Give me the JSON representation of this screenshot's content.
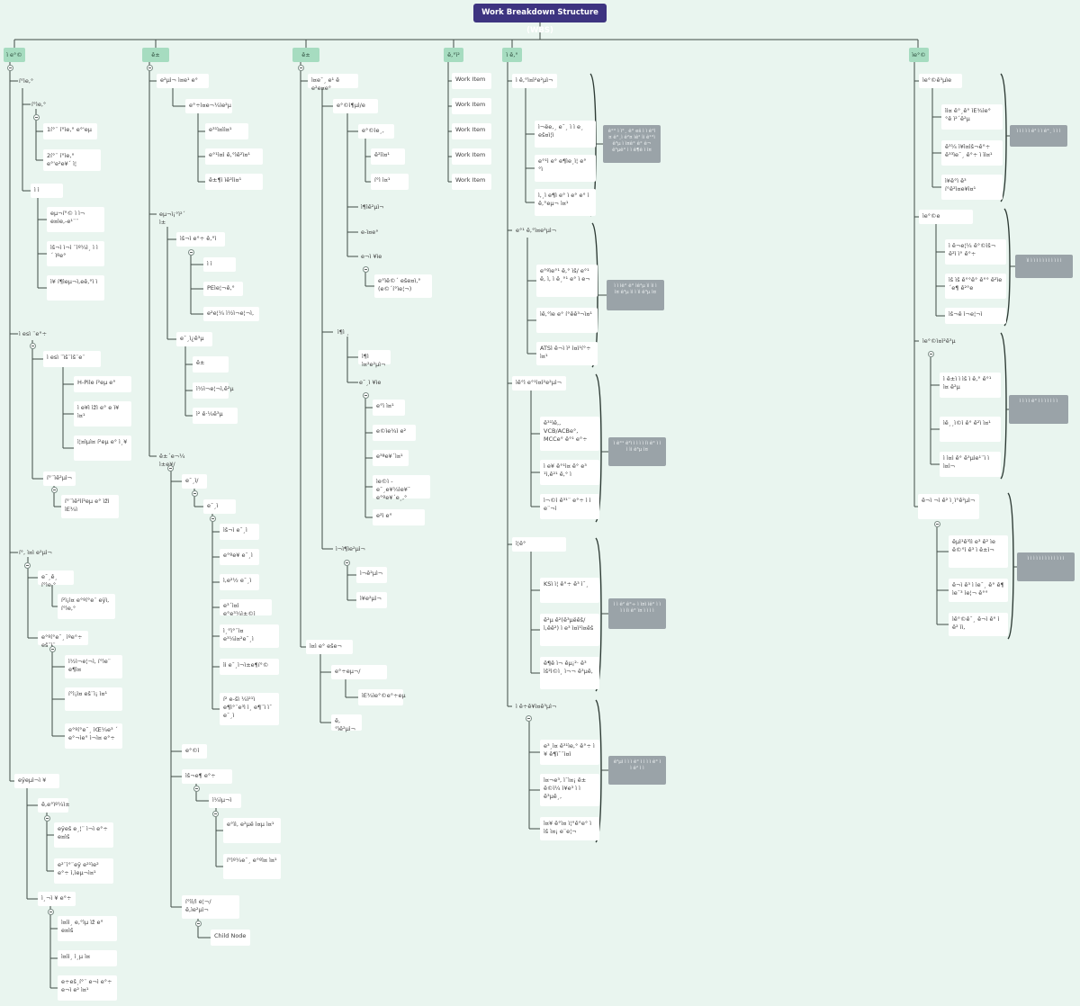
{
  "root": {
    "label": "Work Breakdown Structure (WBS)"
  },
  "columns": [
    {
      "header": "ì e°©",
      "n": {
        "a1": "í°ìe,°",
        "a1a": "í°ìe,°",
        "a1a1": "1í°¨ í°ìe,° e°'eµ",
        "a1a2": "2í°¨ í°ìe,° e°'e²e¥´ ì¦",
        "a1b": "ì  ì",
        "a1b1": "eµ¬í°© ì ì¬ e¤ìe,-e¹¨¨",
        "a1b2": "ìš¬ì ì¬ì  ¨ìº¼ì¸ ì  ì´ ìºe°",
        "a1b3": "ì¥ í¶ìeµ¬ì,eê,°ì ì",
        "a2": "ì  esì  ¨e°÷",
        "a2a": "ì  esì  ¨ìš¨ìš¨e¨",
        "a2a1": "H-Pile í²eµ e°",
        "a2a2": "ì e¥ì ìžì e° e ì¥ ì¤¹",
        "a2a3": "ì¦¤ìµì¤ í²eµ e° ì¸¥",
        "a2b": "í°¨ìê²µì¬",
        "a2b1": "í°¨ìê²ìí²eµ e° ìžì ìE¾ì",
        "a3": "í°, ì¤ì e²µì¬",
        "a3a": "e¯¸ê¸ í°ìe,°",
        "a3a1": "í²ì¡ì¤ e°ºí°e¨ eÿì, í°ìe,°",
        "a3b": "e°ºí°e¯¸ ìºe°÷ eš¨ì¨",
        "a3b1": "ì½ì¬e¦¬ì, í°ìe¨ e¶ì¤",
        "a3b2": "í°ì¡ì¤ eš¨ì¡ ì¤¹",
        "a3b3": "e°ºí°e¯¸ ìŒ¼e³ ´ e°¬ìe°  ì¬ì¤ e°÷",
        "a4": "eÿeµì¬ì  ¥",
        "a4a": "ê,e°ìº¼ì±",
        "a4a1": "eÿeš e¸¦¨ ì¬ì e°÷ e¤ìš",
        "a4a2": "e²¨ì°¨eÿ e²¹ìe² e°÷ ì,ìeµ¬ì¤¹",
        "a4b": "ì¸¬ì  ¥ e°÷",
        "a4b1": "ì¤ìì¸ e,°ìµ ìž e° e¤ìš",
        "a4b2": "ì¤ìì¸ ì¸µ ì¤",
        "a4b3": "e÷eš¸í°¨ e¬ì e°÷ e¬ì e² ì¤¹"
      }
    },
    {
      "header": "ê±",
      "n": {
        "b1": "e²µì¬ ì¤e¹ e°",
        "b1a": "e°÷ì¤e¬¼ìe²µ",
        "b1a1": "e³¹ì¤ìì¤¹",
        "b1a2": "e°¹ì¤ì ê,°ìê²ì¤¹",
        "b1a3": "ê±¶ì ìê²ìì¤¹",
        "b2": "eµ¬ì¡°ì²´ ì±",
        "b2a": "ìš¬ì e°÷ ê,°ì",
        "b2a1": "ì  ì",
        "b2a2": "PEìe¦¬ê,°",
        "b2a3": "e²e¦¼ ì½ì¬e¦¬ì,",
        "b3": "e¯¸ì¿ê³µ",
        "b3a": "ì² ê·¼ê³µ",
        "b3a1": "ê±",
        "b3a2": "ì½ì¬e¦¬ì,ê²µ",
        "b4": "ê±´e¬¼ ì±e¥/",
        "b4a": "e¯¸ì/",
        "b4a1": "e¯¸ì",
        "b4a2": "ìš¬ì e¯¸ì",
        "b4a3": "e°ºe¥ e¯¸ì",
        "b4a4": "ì,e²½ e¯¸ì",
        "b4a5": "e³´ì¤ì e°e³¼ì±©ì",
        "b4a6": "ì¸°ì°¨ì¤ e³¼ì¤²e¯¸ì",
        "b4a7": "ìì e¯¸ì¬ì±e¶í°©",
        "b4a8": "í² e-šì   ¼ì²¹ì e¶ì°¨e³ì ì¸ e¶¨ì  ì¯ e¯¸ì",
        "b4b": "e°©ì",
        "b4c": "ìš¬e¶ e°÷",
        "b4c1": "ì¼ìµ¬ì",
        "b4c1a": "e°ìì, e²µë ì¤µ ì¤¹",
        "b4c1b": "í°ìº¼e¯¸ e°ºì¤ ì¤¹",
        "b4d": "í°ìì/ì e¦¬/ ê,ìe²µì¬",
        "b4d1": "Child Node"
      }
    },
    {
      "header": "ê±",
      "n": {
        "c1": "ì¤e¯¸ e¹ ê e²e¤e°",
        "c1a": "e°©ì¶µì/e",
        "c1a1": "e°©ìe¸,",
        "c1a1a": "ê²ìì¤¹",
        "c1a1b": "í°ì ì¤¹",
        "c1a2": "ì¶ìê²µì¬",
        "c1a3": "e-ì¤e°",
        "c1a4": "e¬ì  ¥ìe",
        "c1a4a": "e°ìê©´ eše¤ì,° (e©´í°ìe¦¬)",
        "c1b": "ì¶ì ¸",
        "c1b1": "ì¶ì ì¤²e²µì¬",
        "c1b2": "e¯¸ì  ¥ìe",
        "c1b2a": "e°ì ì¤¹",
        "c1b2b": "e©ìe¾ì e²",
        "c1b2c": "e³ªe¥´ì¤¹",
        "c1b2d": "ìe©ì ­ e¯¸e¥¼ìe¥¯ e°ºe¥´e¸,°",
        "c1b2e": "e²ì e°",
        "c1c": "ì¬ì¶ìe²µì¬",
        "c1c1": "ì¬ê²µì¬",
        "c1c2": "ì¥e²µì¬",
        "c2": "ì¤ì e° eše¬",
        "c2a": "e°÷eµ¬/",
        "c2a1": "ìE¾ìe°©e°÷eµ",
        "c2b": "ê,°ìê²µì¬"
      }
    },
    {
      "header": "ê,°ì²",
      "n": {
        "d1": "Work Item",
        "d2": "Work Item",
        "d3": "Work Item",
        "d4": "Work Item",
        "d5": "Work Item"
      }
    },
    {
      "header": "ì ê,°",
      "n": {
        "e1": "ì ê,°ì¤ì²e²µì¬",
        "e1a": "ì¬ëe,¸ e¯¸ ì ì e¸ eš¤ì¦ì",
        "e1b": "e°¹ì  e° e¶ìe¸ì¦ e° °ì",
        "e1c": "ì,¸ì e¶ì e° ì e° e° ì  ê,°eµ¬ ì¤¹",
        "e2": "e°¹ ê,°ì¤e²µì¬",
        "e2a": "e°ºìe°¹ ê,° ìš/ e°¹ ê, ì, ì  ê¸°¹ e° ì e¬",
        "e2b": "ìê,°ìe e° í°êê³¬ì¤¹",
        "e2c": "ATSì  ê¬ì ì² ì¤ì¹í°÷ ì¤¹",
        "e3": "ìê°ì e°¹ì¤ì²e²µì¬",
        "e3a": "ê³¹ìê,, VCB/ACBe°, MCCe° ê°¹  e°÷",
        "e3b": "ì e¥ ê°¹ì¤ ê° e³ ¹ì,ê²¹ ê,° ì",
        "e3c": "ì¬©ì ê³¹¨ e°÷ ì ì e¨¬ì",
        "e4": "ì¦ê°",
        "e4a": "KSì  ì¦  ê°÷ ê³ ì¯¸",
        "e4b": "ê²µ ê²(ê³µëêš/ ì,êê²) ì e³ ì¤ì¹ì¤êš",
        "e4c": "ê¶ê ì¬ êµ¡²· ê³ ìš²ì©ì¸ ì¬¬ ê³µê,",
        "e5": "ì ê÷ê¥ì¤ê³µì¬",
        "e5a": "e³¸ì¤ ê³¹ìe,° ê°÷ ì ¥ ê¶ì¯¨ì¤ì",
        "e5b": "ì¤¬e³,  ì¯ì¤¡ ê± ê©ì¼ ì¥e³ ì ì ê³µê¸,",
        "e5c": "ì¤¥ ê°ì¤ ì¦°ê°e° ì ìš ì¤¡ e¨e¦¬"
      }
    },
    {
      "header": "ìe°©",
      "n": {
        "f1": "ìe°©ê³µìe",
        "f1a": "ìì¤ ê°¸ê° ìE¾ìe° °ê ì²´ê²µ",
        "f1b": "ê³¼ ì¥ì¤ìš¬ê°÷ ê³³ìe¯¸ ê°÷ ì ìì¤¹",
        "f1c": "ì¥ê°ì ê³ í°ê²ì¤e¥ì¤¹",
        "f2": "ìe°©e",
        "f2a": "ì  ê¬e¦¼ ê°©ìš¬ ê²ì ì° ê°÷",
        "f2b": "ìš ìš ê°°ê° ê°° ê²ìe ´e¶ ê²°e",
        "f2c": "ìš¬ê ì¬e¦¬ì",
        "f3": "ìe°©ì¤ì²ê³µ",
        "f3a": "ì  ê±ì  ì ìš ì ê,° ê°¹ ì¤ ê²µ",
        "f3b": "ìê¸¸ì©ì ê° ê²ì ì¤¹",
        "f3c": "ì ì¤ì ê° ê³µìe¹¨ì ì ì¤ì¬",
        "f4": "ê¬ì ¬ì ê² ì¸ì°ê²µì¬",
        "f4a": "êµì¹ê³ìì e³ ê² ìe ê©°ì ê³ ì ê±ì¬",
        "f4b": "ê¬ì ê³ ì ìe¯¸ ê° ê¶ ìe¯³ ìe¦¬ ê°°",
        "f4c": "ìê°©ê¯¸ ê¬ì ê° ì ê² ìì,"
      }
    }
  ],
  "notes": {
    "n1": "ê°° ì ì°¸ ê° eš ì ì ê°ì ¤ ê°¸ì ê²¤ ìê² ìì ê¹°ì ê³µ ì ì¤ê° ê° ê¬ ê³µê° ì ì ê¶ê ì ì¤",
    "n2": "ì ì ìê° ê° ìê²µ ìì ìì ì ì¤ ê³µ ìì ì ìì ê³µ ì¤",
    "n3": "ì ê°¹ ê²ì ì ì ì ì ìì ê° ì ì ì ìì ê³µ ì¤",
    "n4": "ì ì ê² ê°÷ ì ì¤ì ìê° ì ì ì ì ìì ê° ì¤ ì ì ì ì",
    "n5": "ê²µì ì ì ì ê° ì ì ì ì ê° ì ì ê² ì ì",
    "n6": "ì ì ì ì ì ê² ì ì ê°¸ ì ì ì",
    "n7": "ìì ì ì ì ì ì ì ì ì ì ì ì",
    "n8": "ì ì ì ì ê° ì ì ì ì ì ì ì",
    "n9": "ì ì ì ì ì ì ì ì ì ì ì ì ì"
  }
}
